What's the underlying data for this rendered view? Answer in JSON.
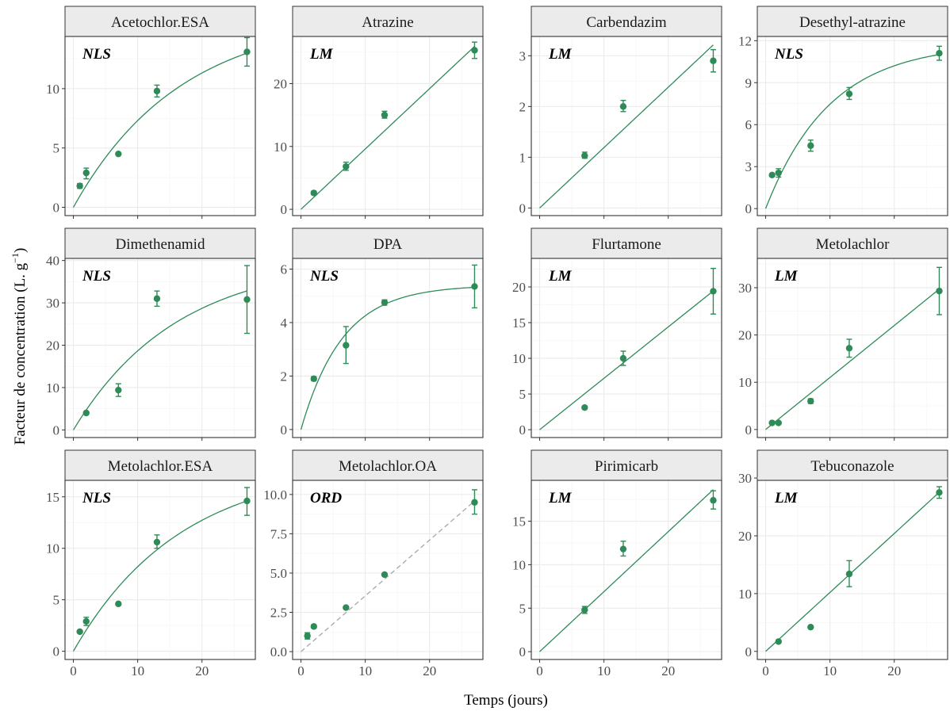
{
  "figure": {
    "xlabel": "Temps (jours)",
    "ylabel_main": "Facteur de concentration (L. g",
    "ylabel_sup": "−1",
    "ylabel_close": ")"
  },
  "colors": {
    "points": "#2e8b57",
    "fit": "#2e8b57",
    "ord_fit": "#a6a6a6",
    "strip_bg": "#ebebeb",
    "grid_major": "#ebebeb",
    "grid_minor": "#f5f5f5",
    "panel_border": "#333333"
  },
  "chart_data": [
    {
      "type": "scatter",
      "title": "Acetochlor.ESA",
      "model": "NLS",
      "xlim": [
        -1.3,
        28.3
      ],
      "ylim": [
        -0.7,
        14.4
      ],
      "xticks": [
        0,
        10,
        20
      ],
      "yticks": [
        0,
        5,
        10
      ],
      "points": [
        {
          "x": 1,
          "y": 1.8,
          "lo": 1.6,
          "hi": 2.0
        },
        {
          "x": 2,
          "y": 2.9,
          "lo": 2.4,
          "hi": 3.3
        },
        {
          "x": 7,
          "y": 4.5,
          "lo": 4.4,
          "hi": 4.6
        },
        {
          "x": 13,
          "y": 9.8,
          "lo": 9.3,
          "hi": 10.3
        },
        {
          "x": 27,
          "y": 13.1,
          "lo": 11.9,
          "hi": 14.3
        }
      ],
      "fit": {
        "kind": "nls",
        "a": 16.2,
        "k": 0.06,
        "lty": "solid"
      }
    },
    {
      "type": "scatter",
      "title": "Atrazine",
      "model": "LM",
      "xlim": [
        -1.3,
        28.3
      ],
      "ylim": [
        -1.0,
        27.5
      ],
      "xticks": [
        0,
        10,
        20
      ],
      "yticks": [
        0,
        10,
        20
      ],
      "points": [
        {
          "x": 2,
          "y": 2.6,
          "lo": 2.3,
          "hi": 2.9
        },
        {
          "x": 7,
          "y": 6.8,
          "lo": 6.2,
          "hi": 7.5
        },
        {
          "x": 13,
          "y": 15.0,
          "lo": 14.5,
          "hi": 15.6
        },
        {
          "x": 27,
          "y": 25.3,
          "lo": 24.0,
          "hi": 26.6
        }
      ],
      "fit": {
        "kind": "lm",
        "slope": 0.96,
        "intercept": 0,
        "lty": "solid"
      }
    },
    {
      "type": "scatter",
      "title": "Carbendazim",
      "model": "LM",
      "xlim": [
        -1.3,
        28.3
      ],
      "ylim": [
        -0.15,
        3.38
      ],
      "xticks": [
        0,
        10,
        20
      ],
      "yticks": [
        0,
        1,
        2,
        3
      ],
      "points": [
        {
          "x": 7,
          "y": 1.03,
          "lo": 0.98,
          "hi": 1.1
        },
        {
          "x": 13,
          "y": 2.0,
          "lo": 1.9,
          "hi": 2.12
        },
        {
          "x": 27,
          "y": 2.9,
          "lo": 2.68,
          "hi": 3.12
        }
      ],
      "fit": {
        "kind": "lm",
        "slope": 0.119,
        "intercept": 0,
        "lty": "solid"
      }
    },
    {
      "type": "scatter",
      "title": "Desethyl-atrazine",
      "model": "NLS",
      "xlim": [
        -1.3,
        28.3
      ],
      "ylim": [
        -0.5,
        12.3
      ],
      "xticks": [
        0,
        10,
        20
      ],
      "yticks": [
        0,
        3,
        6,
        9,
        12
      ],
      "points": [
        {
          "x": 1,
          "y": 2.4,
          "lo": 2.3,
          "hi": 2.5
        },
        {
          "x": 2,
          "y": 2.55,
          "lo": 2.25,
          "hi": 2.85
        },
        {
          "x": 7,
          "y": 4.5,
          "lo": 4.1,
          "hi": 4.9
        },
        {
          "x": 13,
          "y": 8.2,
          "lo": 7.8,
          "hi": 8.65
        },
        {
          "x": 27,
          "y": 11.1,
          "lo": 10.6,
          "hi": 11.6
        }
      ],
      "fit": {
        "kind": "nls",
        "a": 11.8,
        "k": 0.1,
        "lty": "solid"
      }
    },
    {
      "type": "scatter",
      "title": "Dimethenamid",
      "model": "NLS",
      "xlim": [
        -1.3,
        28.3
      ],
      "ylim": [
        -1.8,
        40.5
      ],
      "xticks": [
        0,
        10,
        20
      ],
      "yticks": [
        0,
        10,
        20,
        30,
        40
      ],
      "points": [
        {
          "x": 2,
          "y": 4.0,
          "lo": 3.7,
          "hi": 4.3
        },
        {
          "x": 7,
          "y": 9.4,
          "lo": 7.9,
          "hi": 10.9
        },
        {
          "x": 13,
          "y": 31.0,
          "lo": 29.2,
          "hi": 32.8
        },
        {
          "x": 27,
          "y": 30.8,
          "lo": 22.8,
          "hi": 38.8
        }
      ],
      "fit": {
        "kind": "nls",
        "a": 40.4,
        "k": 0.062,
        "lty": "solid"
      }
    },
    {
      "type": "scatter",
      "title": "DPA",
      "model": "NLS",
      "xlim": [
        -1.3,
        28.3
      ],
      "ylim": [
        -0.3,
        6.4
      ],
      "xticks": [
        0,
        10,
        20
      ],
      "yticks": [
        0,
        2,
        4,
        6
      ],
      "points": [
        {
          "x": 2,
          "y": 1.9,
          "lo": 1.82,
          "hi": 1.98
        },
        {
          "x": 7,
          "y": 3.15,
          "lo": 2.47,
          "hi": 3.85
        },
        {
          "x": 13,
          "y": 4.75,
          "lo": 4.65,
          "hi": 4.85
        },
        {
          "x": 27,
          "y": 5.35,
          "lo": 4.55,
          "hi": 6.15
        }
      ],
      "fit": {
        "kind": "nls",
        "a": 5.4,
        "k": 0.155,
        "lty": "solid"
      }
    },
    {
      "type": "scatter",
      "title": "Flurtamone",
      "model": "LM",
      "xlim": [
        -1.3,
        28.3
      ],
      "ylim": [
        -1.1,
        24.0
      ],
      "xticks": [
        0,
        10,
        20
      ],
      "yticks": [
        0,
        5,
        10,
        15,
        20
      ],
      "points": [
        {
          "x": 7,
          "y": 3.1,
          "lo": 2.9,
          "hi": 3.3
        },
        {
          "x": 13,
          "y": 10.0,
          "lo": 9.0,
          "hi": 11.0
        },
        {
          "x": 27,
          "y": 19.4,
          "lo": 16.2,
          "hi": 22.6
        }
      ],
      "fit": {
        "kind": "lm",
        "slope": 0.72,
        "intercept": 0,
        "lty": "solid"
      }
    },
    {
      "type": "scatter",
      "title": "Metolachlor",
      "model": "LM",
      "xlim": [
        -1.3,
        28.3
      ],
      "ylim": [
        -1.7,
        36.2
      ],
      "xticks": [
        0,
        10,
        20
      ],
      "yticks": [
        0,
        10,
        20,
        30
      ],
      "points": [
        {
          "x": 1,
          "y": 1.4,
          "lo": 1.2,
          "hi": 1.6
        },
        {
          "x": 2,
          "y": 1.4,
          "lo": 1.2,
          "hi": 1.6
        },
        {
          "x": 7,
          "y": 6.0,
          "lo": 5.5,
          "hi": 6.5
        },
        {
          "x": 13,
          "y": 17.2,
          "lo": 15.3,
          "hi": 19.1
        },
        {
          "x": 27,
          "y": 29.3,
          "lo": 24.3,
          "hi": 34.3
        }
      ],
      "fit": {
        "kind": "lm",
        "slope": 1.1,
        "intercept": 0,
        "lty": "solid"
      }
    },
    {
      "type": "scatter",
      "title": "Metolachlor.ESA",
      "model": "NLS",
      "xlim": [
        -1.3,
        28.3
      ],
      "ylim": [
        -0.8,
        16.6
      ],
      "xticks": [
        0,
        10,
        20
      ],
      "yticks": [
        0,
        5,
        10,
        15
      ],
      "points": [
        {
          "x": 1,
          "y": 1.9,
          "lo": 1.8,
          "hi": 2.0
        },
        {
          "x": 2,
          "y": 2.9,
          "lo": 2.5,
          "hi": 3.3
        },
        {
          "x": 7,
          "y": 4.6,
          "lo": 4.5,
          "hi": 4.7
        },
        {
          "x": 13,
          "y": 10.6,
          "lo": 10.0,
          "hi": 11.3
        },
        {
          "x": 27,
          "y": 14.6,
          "lo": 13.2,
          "hi": 15.9
        }
      ],
      "fit": {
        "kind": "nls",
        "a": 18.2,
        "k": 0.06,
        "lty": "solid"
      }
    },
    {
      "type": "scatter",
      "title": "Metolachlor.OA",
      "model": "ORD",
      "xlim": [
        -1.3,
        28.3
      ],
      "ylim": [
        -0.5,
        10.9
      ],
      "xticks": [
        0,
        10,
        20
      ],
      "yticks": [
        0.0,
        2.5,
        5.0,
        7.5,
        10.0
      ],
      "ytick_labels": [
        "0.0",
        "2.5",
        "5.0",
        "7.5",
        "10.0"
      ],
      "points": [
        {
          "x": 1,
          "y": 1.0,
          "lo": 0.8,
          "hi": 1.2
        },
        {
          "x": 2,
          "y": 1.6,
          "lo": 1.5,
          "hi": 1.7
        },
        {
          "x": 7,
          "y": 2.8,
          "lo": 2.75,
          "hi": 2.85
        },
        {
          "x": 13,
          "y": 4.9,
          "lo": 4.85,
          "hi": 4.95
        },
        {
          "x": 27,
          "y": 9.5,
          "lo": 8.75,
          "hi": 10.3
        }
      ],
      "fit": {
        "kind": "lm",
        "slope": 0.355,
        "intercept": 0,
        "lty": "dashed"
      }
    },
    {
      "type": "scatter",
      "title": "Pirimicarb",
      "model": "LM",
      "xlim": [
        -1.3,
        28.3
      ],
      "ylim": [
        -0.9,
        19.7
      ],
      "xticks": [
        0,
        10,
        20
      ],
      "yticks": [
        0,
        5,
        10,
        15
      ],
      "points": [
        {
          "x": 7,
          "y": 4.8,
          "lo": 4.4,
          "hi": 5.2
        },
        {
          "x": 13,
          "y": 11.8,
          "lo": 11.0,
          "hi": 12.7
        },
        {
          "x": 27,
          "y": 17.4,
          "lo": 16.4,
          "hi": 18.5
        }
      ],
      "fit": {
        "kind": "lm",
        "slope": 0.69,
        "intercept": 0,
        "lty": "solid"
      }
    },
    {
      "type": "scatter",
      "title": "Tebuconazole",
      "model": "LM",
      "xlim": [
        -1.3,
        28.3
      ],
      "ylim": [
        -1.4,
        29.6
      ],
      "xticks": [
        0,
        10,
        20
      ],
      "yticks": [
        0,
        10,
        20,
        30
      ],
      "points": [
        {
          "x": 2,
          "y": 1.7,
          "lo": 1.5,
          "hi": 1.9
        },
        {
          "x": 7,
          "y": 4.2,
          "lo": 4.0,
          "hi": 4.4
        },
        {
          "x": 13,
          "y": 13.4,
          "lo": 11.2,
          "hi": 15.7
        },
        {
          "x": 27,
          "y": 27.5,
          "lo": 26.5,
          "hi": 28.5
        }
      ],
      "fit": {
        "kind": "lm",
        "slope": 1.02,
        "intercept": 0,
        "lty": "solid"
      }
    }
  ]
}
